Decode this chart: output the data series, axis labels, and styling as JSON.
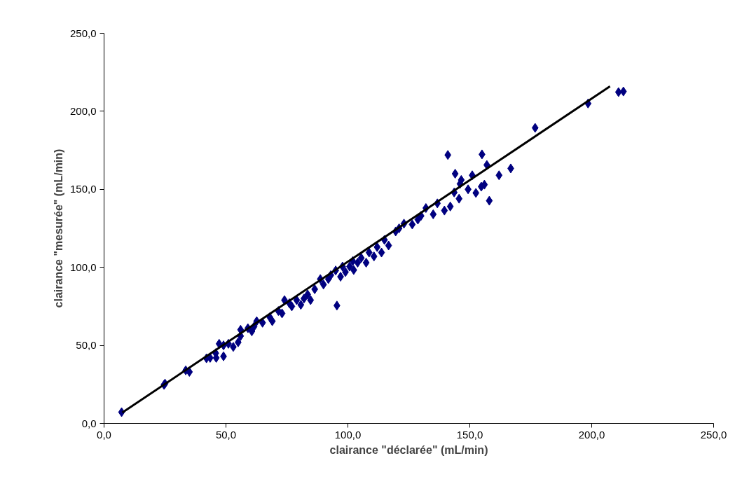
{
  "chart_data": {
    "type": "scatter",
    "xlabel": "clairance \"déclarée\" (mL/min)",
    "ylabel": "clairance \"mesurée\" (mL/min)",
    "xlim": [
      0,
      250
    ],
    "ylim": [
      0,
      250
    ],
    "xticks": [
      {
        "value": 0,
        "label": "0,0"
      },
      {
        "value": 50,
        "label": "50,0"
      },
      {
        "value": 100,
        "label": "100,0"
      },
      {
        "value": 150,
        "label": "150,0"
      },
      {
        "value": 200,
        "label": "200,0"
      },
      {
        "value": 250,
        "label": "250,0"
      }
    ],
    "yticks": [
      {
        "value": 0,
        "label": "0,0"
      },
      {
        "value": 50,
        "label": "50,0"
      },
      {
        "value": 100,
        "label": "100,0"
      },
      {
        "value": 150,
        "label": "150,0"
      },
      {
        "value": 200,
        "label": "200,0"
      },
      {
        "value": 250,
        "label": "250,0"
      }
    ],
    "grid": false,
    "marker": "diamond",
    "series": [
      {
        "color": "#000080",
        "x": [
          7.2,
          24.6,
          25,
          33.5,
          35,
          42,
          43.5,
          45.8,
          46,
          47.2,
          49,
          49,
          51,
          53,
          55,
          56,
          56,
          59,
          60.6,
          62.6,
          61.5,
          65,
          68,
          69,
          71.5,
          73,
          74,
          76,
          77,
          79,
          80.7,
          82,
          83.5,
          84.7,
          86.4,
          88.7,
          90,
          92,
          93,
          95,
          95.5,
          97,
          97.8,
          99,
          100.7,
          102,
          102.4,
          104,
          105.5,
          107.5,
          108.7,
          110.7,
          112,
          113.8,
          115,
          116.7,
          119.6,
          121,
          123,
          126.4,
          128.7,
          130,
          132,
          135,
          136.7,
          139.6,
          141,
          142,
          143.6,
          144,
          145.6,
          146,
          146.5,
          149.3,
          151,
          152.5,
          154.7,
          155,
          156,
          157,
          158,
          162,
          166.8,
          176.8,
          198.5,
          211,
          213
        ],
        "values": [
          7.2,
          24.7,
          25.5,
          34,
          33,
          41.7,
          42,
          45,
          42,
          51,
          50,
          43,
          51,
          49,
          52,
          60,
          56,
          61,
          59,
          65.5,
          62,
          64.5,
          68,
          65.5,
          72,
          70.5,
          79,
          77,
          75,
          79,
          76,
          80,
          82.6,
          79,
          86,
          92.5,
          89,
          92.5,
          95,
          98,
          75.5,
          94,
          100.5,
          97,
          100.5,
          104,
          98.3,
          103,
          106,
          103,
          109.5,
          107,
          113,
          109.5,
          117.6,
          114,
          123,
          125,
          128,
          127.5,
          130.6,
          133,
          138,
          134,
          141,
          136.4,
          172,
          139,
          148,
          160,
          144,
          153.5,
          156,
          150,
          159,
          147.7,
          151.7,
          172.4,
          153,
          165.6,
          142.7,
          159,
          163.4,
          189.4,
          205,
          212.3,
          212.7
        ]
      },
      {
        "type": "line",
        "color": "#000000",
        "marker": "none",
        "line_style": "solid",
        "x": [
          7.5,
          207.5
        ],
        "values": [
          7,
          216
        ]
      }
    ]
  }
}
